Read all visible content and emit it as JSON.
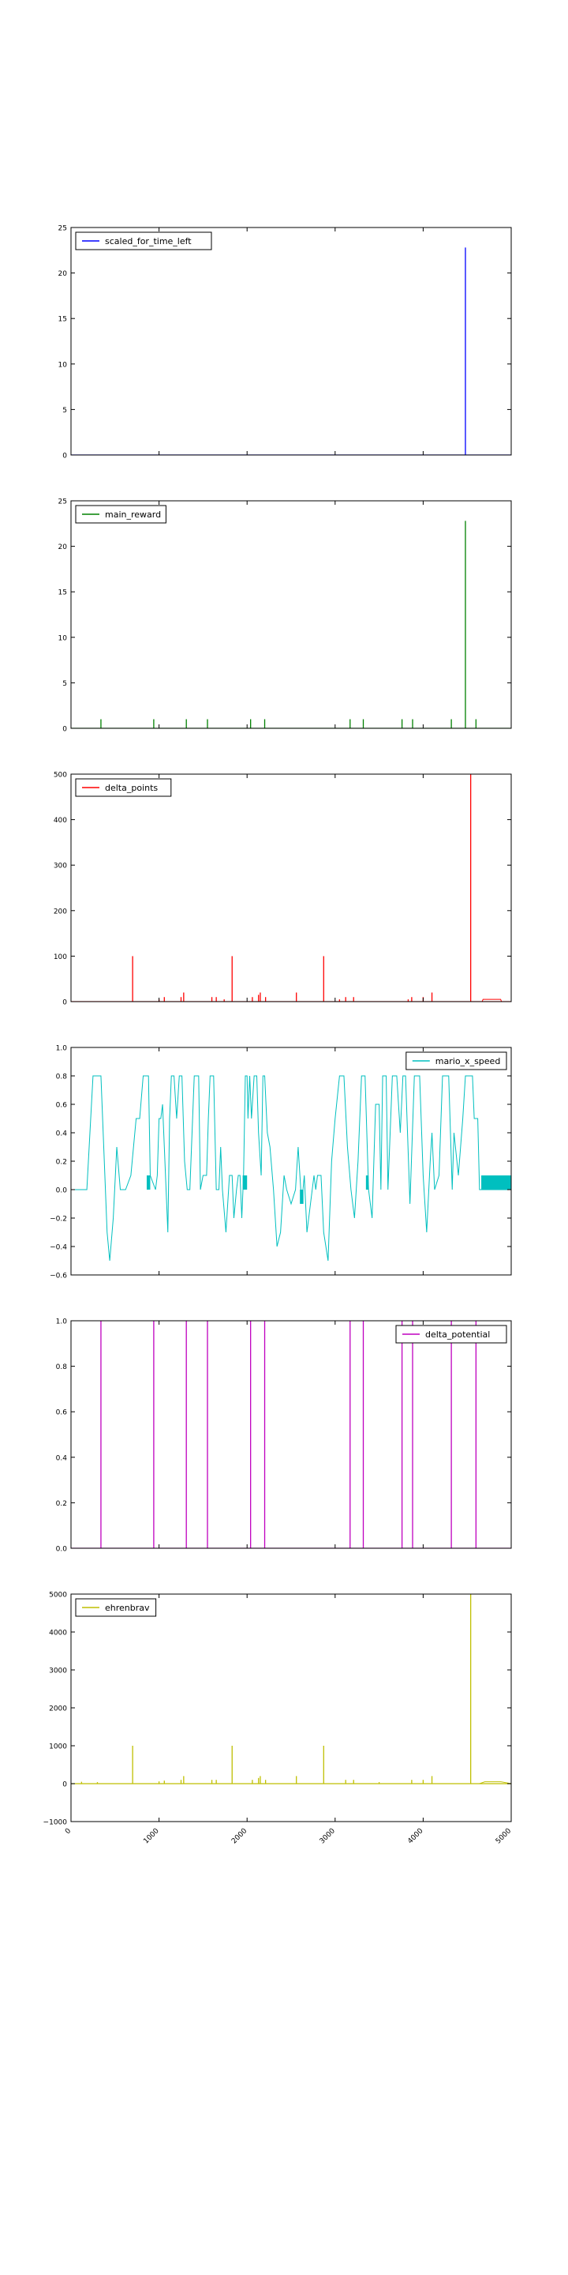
{
  "figure": {
    "xlim": [
      0,
      5000
    ],
    "x_ticks": [
      0,
      1000,
      2000,
      3000,
      4000,
      5000
    ],
    "x_tick_labels": [
      "0",
      "1000",
      "2000",
      "3000",
      "4000",
      "5000"
    ],
    "x_tick_rotation_deg": -45
  },
  "chart_data": [
    {
      "type": "line",
      "legend": "scaled_for_time_left",
      "legend_position": "top-left",
      "color": "#0000ff",
      "ylim": [
        0,
        25
      ],
      "y_ticks": [
        0,
        5,
        10,
        15,
        20,
        25
      ],
      "y_tick_labels": [
        "0",
        "5",
        "10",
        "15",
        "20",
        "25"
      ],
      "baseline": 0,
      "spikes": [
        {
          "x": 4480,
          "y": 22.8
        }
      ]
    },
    {
      "type": "line",
      "legend": "main_reward",
      "legend_position": "top-left",
      "color": "#008000",
      "ylim": [
        0,
        25
      ],
      "y_ticks": [
        0,
        5,
        10,
        15,
        20,
        25
      ],
      "y_tick_labels": [
        "0",
        "5",
        "10",
        "15",
        "20",
        "25"
      ],
      "baseline": 0,
      "spikes": [
        {
          "x": 340,
          "y": 1
        },
        {
          "x": 940,
          "y": 1
        },
        {
          "x": 1310,
          "y": 1
        },
        {
          "x": 1550,
          "y": 1
        },
        {
          "x": 2040,
          "y": 1
        },
        {
          "x": 2200,
          "y": 1
        },
        {
          "x": 3170,
          "y": 1
        },
        {
          "x": 3320,
          "y": 1
        },
        {
          "x": 3760,
          "y": 1
        },
        {
          "x": 3880,
          "y": 1
        },
        {
          "x": 4320,
          "y": 1
        },
        {
          "x": 4480,
          "y": 22.8
        },
        {
          "x": 4600,
          "y": 1
        }
      ]
    },
    {
      "type": "line",
      "legend": "delta_points",
      "legend_position": "top-left",
      "color": "#ff0000",
      "ylim": [
        0,
        500
      ],
      "y_ticks": [
        0,
        100,
        200,
        300,
        400,
        500
      ],
      "y_tick_labels": [
        "0",
        "100",
        "200",
        "300",
        "400",
        "500"
      ],
      "baseline": 0,
      "spikes": [
        {
          "x": 700,
          "y": 100
        },
        {
          "x": 1000,
          "y": 5
        },
        {
          "x": 1060,
          "y": 10
        },
        {
          "x": 1250,
          "y": 10
        },
        {
          "x": 1280,
          "y": 20
        },
        {
          "x": 1600,
          "y": 10
        },
        {
          "x": 1650,
          "y": 10
        },
        {
          "x": 1740,
          "y": 5
        },
        {
          "x": 1830,
          "y": 100
        },
        {
          "x": 2060,
          "y": 10
        },
        {
          "x": 2130,
          "y": 15
        },
        {
          "x": 2150,
          "y": 20
        },
        {
          "x": 2210,
          "y": 10
        },
        {
          "x": 2560,
          "y": 20
        },
        {
          "x": 2870,
          "y": 100
        },
        {
          "x": 3050,
          "y": 5
        },
        {
          "x": 3120,
          "y": 10
        },
        {
          "x": 3210,
          "y": 10
        },
        {
          "x": 3830,
          "y": 5
        },
        {
          "x": 3870,
          "y": 10
        },
        {
          "x": 4000,
          "y": 10
        },
        {
          "x": 4100,
          "y": 20
        },
        {
          "x": 4540,
          "y": 500
        }
      ],
      "trail": [
        [
          4670,
          0
        ],
        [
          4680,
          5
        ],
        [
          4880,
          5
        ],
        [
          4890,
          0
        ]
      ]
    },
    {
      "type": "line",
      "legend": "mario_x_speed",
      "legend_position": "top-right",
      "color": "#00bfbf",
      "ylim": [
        -0.6,
        1.0
      ],
      "y_ticks": [
        -0.6,
        -0.4,
        -0.2,
        0.0,
        0.2,
        0.4,
        0.6,
        0.8,
        1.0
      ],
      "y_tick_labels": [
        "−0.6",
        "−0.4",
        "−0.2",
        "0.0",
        "0.2",
        "0.4",
        "0.6",
        "0.8",
        "1.0"
      ],
      "points": [
        [
          0,
          0
        ],
        [
          180,
          0
        ],
        [
          250,
          0.8
        ],
        [
          340,
          0.8
        ],
        [
          410,
          -0.3
        ],
        [
          440,
          -0.5
        ],
        [
          480,
          -0.2
        ],
        [
          520,
          0.3
        ],
        [
          560,
          0
        ],
        [
          620,
          0
        ],
        [
          680,
          0.1
        ],
        [
          740,
          0.5
        ],
        [
          780,
          0.5
        ],
        [
          820,
          0.8
        ],
        [
          880,
          0.8
        ],
        [
          900,
          0.1
        ],
        [
          960,
          0
        ],
        [
          980,
          0.1
        ],
        [
          1000,
          0.5
        ],
        [
          1020,
          0.5
        ],
        [
          1040,
          0.6
        ],
        [
          1060,
          0.3
        ],
        [
          1080,
          0
        ],
        [
          1100,
          -0.3
        ],
        [
          1120,
          0.5
        ],
        [
          1140,
          0.8
        ],
        [
          1170,
          0.8
        ],
        [
          1200,
          0.5
        ],
        [
          1230,
          0.8
        ],
        [
          1260,
          0.8
        ],
        [
          1290,
          0.2
        ],
        [
          1320,
          0
        ],
        [
          1350,
          0
        ],
        [
          1400,
          0.8
        ],
        [
          1450,
          0.8
        ],
        [
          1470,
          0
        ],
        [
          1500,
          0.1
        ],
        [
          1540,
          0.1
        ],
        [
          1560,
          0.5
        ],
        [
          1580,
          0.8
        ],
        [
          1620,
          0.8
        ],
        [
          1650,
          0
        ],
        [
          1680,
          0
        ],
        [
          1700,
          0.3
        ],
        [
          1720,
          0
        ],
        [
          1760,
          -0.3
        ],
        [
          1800,
          0.1
        ],
        [
          1830,
          0.1
        ],
        [
          1850,
          -0.2
        ],
        [
          1880,
          0
        ],
        [
          1900,
          0.1
        ],
        [
          1920,
          0.1
        ],
        [
          1940,
          -0.2
        ],
        [
          1960,
          0.1
        ],
        [
          1980,
          0.8
        ],
        [
          2000,
          0.8
        ],
        [
          2010,
          0.5
        ],
        [
          2030,
          0.8
        ],
        [
          2050,
          0.5
        ],
        [
          2080,
          0.8
        ],
        [
          2110,
          0.8
        ],
        [
          2130,
          0.4
        ],
        [
          2160,
          0.1
        ],
        [
          2180,
          0.8
        ],
        [
          2200,
          0.8
        ],
        [
          2230,
          0.4
        ],
        [
          2260,
          0.3
        ],
        [
          2300,
          0
        ],
        [
          2340,
          -0.4
        ],
        [
          2380,
          -0.3
        ],
        [
          2420,
          0.1
        ],
        [
          2450,
          0
        ],
        [
          2500,
          -0.1
        ],
        [
          2550,
          0
        ],
        [
          2580,
          0.3
        ],
        [
          2620,
          -0.1
        ],
        [
          2650,
          0.1
        ],
        [
          2680,
          -0.3
        ],
        [
          2720,
          -0.1
        ],
        [
          2760,
          0.1
        ],
        [
          2780,
          0
        ],
        [
          2800,
          0.1
        ],
        [
          2840,
          0.1
        ],
        [
          2870,
          -0.3
        ],
        [
          2920,
          -0.5
        ],
        [
          2960,
          0.2
        ],
        [
          3000,
          0.5
        ],
        [
          3050,
          0.8
        ],
        [
          3100,
          0.8
        ],
        [
          3140,
          0.3
        ],
        [
          3180,
          0
        ],
        [
          3220,
          -0.2
        ],
        [
          3260,
          0.2
        ],
        [
          3300,
          0.8
        ],
        [
          3340,
          0.8
        ],
        [
          3380,
          0
        ],
        [
          3420,
          -0.2
        ],
        [
          3460,
          0.6
        ],
        [
          3500,
          0.6
        ],
        [
          3520,
          0
        ],
        [
          3540,
          0.8
        ],
        [
          3580,
          0.8
        ],
        [
          3600,
          0
        ],
        [
          3650,
          0.8
        ],
        [
          3700,
          0.8
        ],
        [
          3740,
          0.4
        ],
        [
          3770,
          0.8
        ],
        [
          3800,
          0.8
        ],
        [
          3850,
          -0.1
        ],
        [
          3900,
          0.8
        ],
        [
          3960,
          0.8
        ],
        [
          4000,
          0.1
        ],
        [
          4040,
          -0.3
        ],
        [
          4080,
          0.2
        ],
        [
          4100,
          0.4
        ],
        [
          4130,
          0
        ],
        [
          4180,
          0.1
        ],
        [
          4220,
          0.8
        ],
        [
          4290,
          0.8
        ],
        [
          4330,
          0
        ],
        [
          4350,
          0.4
        ],
        [
          4400,
          0.1
        ],
        [
          4450,
          0.5
        ],
        [
          4480,
          0.8
        ],
        [
          4560,
          0.8
        ],
        [
          4580,
          0.5
        ],
        [
          4620,
          0.5
        ],
        [
          4640,
          0
        ],
        [
          4700,
          0
        ],
        [
          5000,
          0
        ]
      ],
      "blocks": [
        {
          "x0": 860,
          "x1": 900,
          "y0": 0,
          "y1": 0.1
        },
        {
          "x0": 1950,
          "x1": 2000,
          "y0": 0,
          "y1": 0.1
        },
        {
          "x0": 2600,
          "x1": 2640,
          "y0": -0.1,
          "y1": 0
        },
        {
          "x0": 3350,
          "x1": 3380,
          "y0": 0,
          "y1": 0.1
        },
        {
          "x0": 4660,
          "x1": 5000,
          "y0": 0,
          "y1": 0.1
        }
      ]
    },
    {
      "type": "line",
      "legend": "delta_potential",
      "legend_position": "top-right",
      "color": "#bf00bf",
      "ylim": [
        0,
        1.0
      ],
      "y_ticks": [
        0.0,
        0.2,
        0.4,
        0.6,
        0.8,
        1.0
      ],
      "y_tick_labels": [
        "0.0",
        "0.2",
        "0.4",
        "0.6",
        "0.8",
        "1.0"
      ],
      "baseline": 0,
      "spikes": [
        {
          "x": 340,
          "y": 1
        },
        {
          "x": 940,
          "y": 1
        },
        {
          "x": 1310,
          "y": 1
        },
        {
          "x": 1550,
          "y": 1
        },
        {
          "x": 2040,
          "y": 1
        },
        {
          "x": 2200,
          "y": 1
        },
        {
          "x": 3170,
          "y": 1
        },
        {
          "x": 3320,
          "y": 1
        },
        {
          "x": 3760,
          "y": 1
        },
        {
          "x": 3880,
          "y": 1
        },
        {
          "x": 4320,
          "y": 1
        },
        {
          "x": 4600,
          "y": 1
        }
      ]
    },
    {
      "type": "line",
      "legend": "ehrenbrav",
      "legend_position": "top-left",
      "color": "#bfbf00",
      "ylim": [
        -1000,
        5000
      ],
      "y_ticks": [
        -1000,
        0,
        1000,
        2000,
        3000,
        4000,
        5000
      ],
      "y_tick_labels": [
        "−1000",
        "0",
        "1000",
        "2000",
        "3000",
        "4000",
        "5000"
      ],
      "baseline": 0,
      "spikes": [
        {
          "x": 120,
          "y": 50
        },
        {
          "x": 300,
          "y": 40
        },
        {
          "x": 700,
          "y": 1000
        },
        {
          "x": 1000,
          "y": 60
        },
        {
          "x": 1060,
          "y": 80
        },
        {
          "x": 1250,
          "y": 100
        },
        {
          "x": 1280,
          "y": 200
        },
        {
          "x": 1600,
          "y": 100
        },
        {
          "x": 1650,
          "y": 100
        },
        {
          "x": 1830,
          "y": 1000
        },
        {
          "x": 2060,
          "y": 100
        },
        {
          "x": 2130,
          "y": 150
        },
        {
          "x": 2150,
          "y": 200
        },
        {
          "x": 2210,
          "y": 100
        },
        {
          "x": 2560,
          "y": 200
        },
        {
          "x": 2870,
          "y": 1000
        },
        {
          "x": 3120,
          "y": 100
        },
        {
          "x": 3210,
          "y": 100
        },
        {
          "x": 3500,
          "y": 40
        },
        {
          "x": 3870,
          "y": 100
        },
        {
          "x": 4000,
          "y": 100
        },
        {
          "x": 4100,
          "y": 200
        },
        {
          "x": 4540,
          "y": 5000
        }
      ],
      "trail": [
        [
          4640,
          0
        ],
        [
          4700,
          50
        ],
        [
          4880,
          50
        ],
        [
          5000,
          0
        ]
      ]
    }
  ]
}
